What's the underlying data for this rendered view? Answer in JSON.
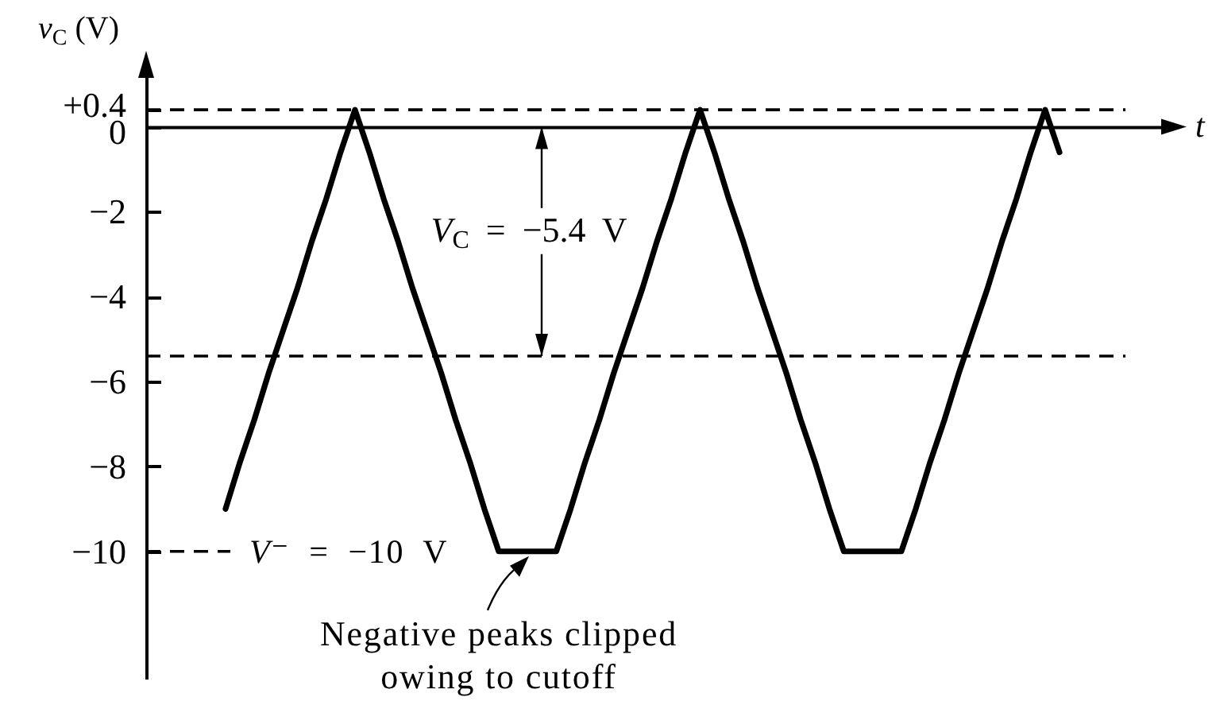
{
  "chart_data": {
    "type": "line",
    "ylabel": "v$_{C}$ (V)",
    "xlabel": "t",
    "categories": [
      null,
      null,
      null,
      null,
      null,
      null,
      null,
      null,
      null,
      null,
      null,
      null,
      null,
      null,
      null,
      null,
      null,
      null,
      null,
      null,
      null,
      null,
      null,
      null,
      null,
      null,
      null,
      null,
      null,
      null,
      null,
      null,
      null,
      null,
      null,
      null,
      null,
      null,
      null,
      null,
      null,
      null,
      null,
      null,
      null,
      null,
      null,
      null,
      null,
      null,
      null,
      null,
      null,
      null,
      null,
      null,
      null,
      null,
      null
    ],
    "series": [
      {
        "color": "#000000",
        "values": [
          -9.0,
          -7.9,
          -6.9,
          -5.8,
          -4.8,
          -3.8,
          -2.7,
          -1.7,
          -0.6,
          0.4,
          -0.6,
          -1.7,
          -2.7,
          -3.8,
          -4.8,
          -5.8,
          -6.9,
          -7.9,
          -9.0,
          -10,
          -10,
          -10,
          -10,
          -10,
          -9.0,
          -7.9,
          -6.9,
          -5.8,
          -4.8,
          -3.8,
          -2.7,
          -1.7,
          -0.6,
          0.4,
          -0.6,
          -1.7,
          -2.7,
          -3.8,
          -4.8,
          -5.8,
          -6.9,
          -7.9,
          -9.0,
          -10,
          -10,
          -10,
          -10,
          -10,
          -9.0,
          -7.9,
          -6.9,
          -5.8,
          -4.8,
          -3.8,
          -2.7,
          -1.7,
          -0.6,
          0.4,
          -0.6
        ]
      }
    ],
    "ylim": [
      -13,
      1.6
    ],
    "yticks": [
      {
        "value": 0.4,
        "label": "+0.4"
      },
      0,
      -2,
      -4,
      -6,
      -8,
      -10
    ],
    "ref_lines": [
      {
        "axis": "y",
        "value": 0.4,
        "line_style": "dashed",
        "color": "#000000"
      },
      {
        "axis": "y",
        "value": -5.4,
        "line_style": "dashed",
        "color": "#000000"
      },
      {
        "axis": "y",
        "value": -10,
        "label": "V⁻ = −10 V",
        "line_style": "dashed",
        "color": "#000000"
      }
    ],
    "annotations": [
      {
        "text": "V$_{C}$ = −5.4 V",
        "y": -5.4
      },
      {
        "text": "Negative peaks clipped\nowing to cutoff",
        "y": -10
      }
    ],
    "tick_labels": "y"
  }
}
